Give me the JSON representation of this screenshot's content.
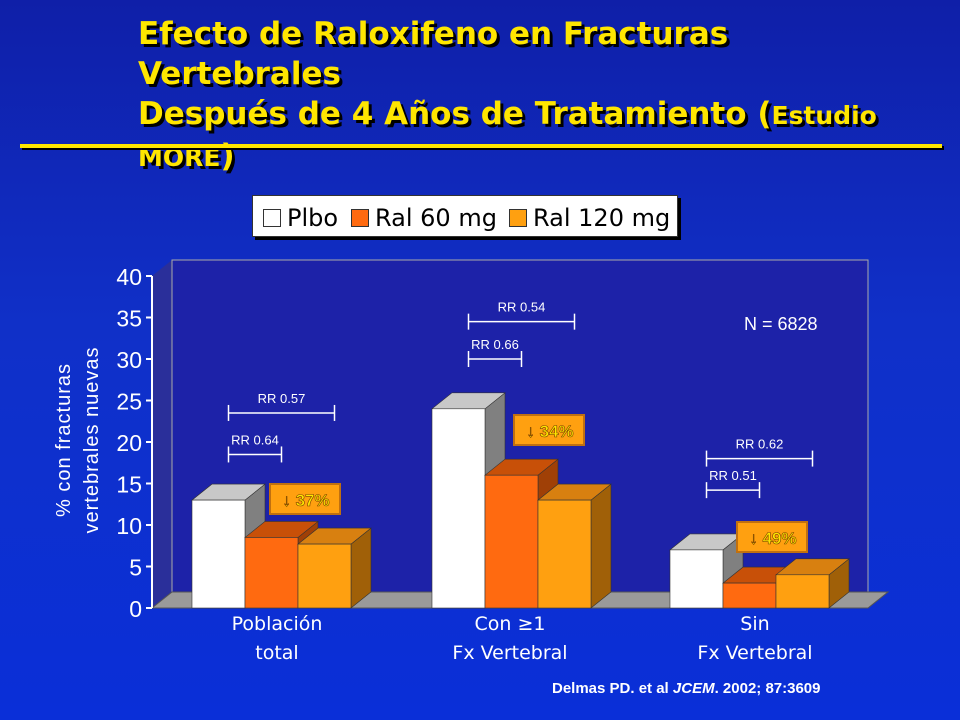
{
  "title": {
    "line1": "Efecto de Raloxifeno en Fracturas Vertebrales",
    "line2_main": "Después de 4 Años de Tratamiento (",
    "line2_small": "Estudio",
    "line3_small": "MORE",
    "line3_close": ")"
  },
  "colors": {
    "plbo": "#ffffff",
    "ral60": "#ff6a10",
    "ral120": "#ffa010",
    "accent": "#ffe600"
  },
  "chart_data": {
    "type": "bar",
    "categories": [
      {
        "line1": "Población",
        "line2": "total"
      },
      {
        "line1": "Con ≥1",
        "line2": "Fx Vertebral"
      },
      {
        "line1": "Sin",
        "line2": "Fx Vertebral"
      }
    ],
    "series": [
      {
        "name": "Plbo",
        "values": [
          13,
          24,
          7
        ]
      },
      {
        "name": "Ral 60 mg",
        "values": [
          8.5,
          16,
          3
        ]
      },
      {
        "name": "Ral 120 mg",
        "values": [
          7.7,
          13,
          4
        ]
      }
    ],
    "ylabel_line1": "% con fracturas",
    "ylabel_line2": "vertebrales nuevas",
    "ylim": [
      0,
      40
    ],
    "yticks": [
      "0",
      "5",
      "10",
      "15",
      "20",
      "25",
      "30",
      "35",
      "40"
    ],
    "annotations": {
      "n_label": "N = 6828",
      "rr": [
        {
          "label": "RR 0.57",
          "group": 0,
          "from_series": 0,
          "to_series": 2,
          "level": 23.5
        },
        {
          "label": "RR 0.64",
          "group": 0,
          "from_series": 0,
          "to_series": 1,
          "level": 18.5
        },
        {
          "label": "RR 0.54",
          "group": 1,
          "from_series": 0,
          "to_series": 2,
          "level": 34.5
        },
        {
          "label": "RR 0.66",
          "group": 1,
          "from_series": 0,
          "to_series": 1,
          "level": 30.0
        },
        {
          "label": "RR 0.62",
          "group": 2,
          "from_series": 0,
          "to_series": 2,
          "level": 18.0
        },
        {
          "label": "RR 0.51",
          "group": 2,
          "from_series": 0,
          "to_series": 1,
          "level": 14.2
        }
      ],
      "reductions": [
        {
          "label": "↓ 37%",
          "group": 0
        },
        {
          "label": "↓ 34%",
          "group": 1
        },
        {
          "label": "↓ 49%",
          "group": 2
        }
      ]
    }
  },
  "citation": {
    "authors": "Delmas PD. et al ",
    "journal": "JCEM",
    "rest": ". 2002; 87:3609"
  }
}
